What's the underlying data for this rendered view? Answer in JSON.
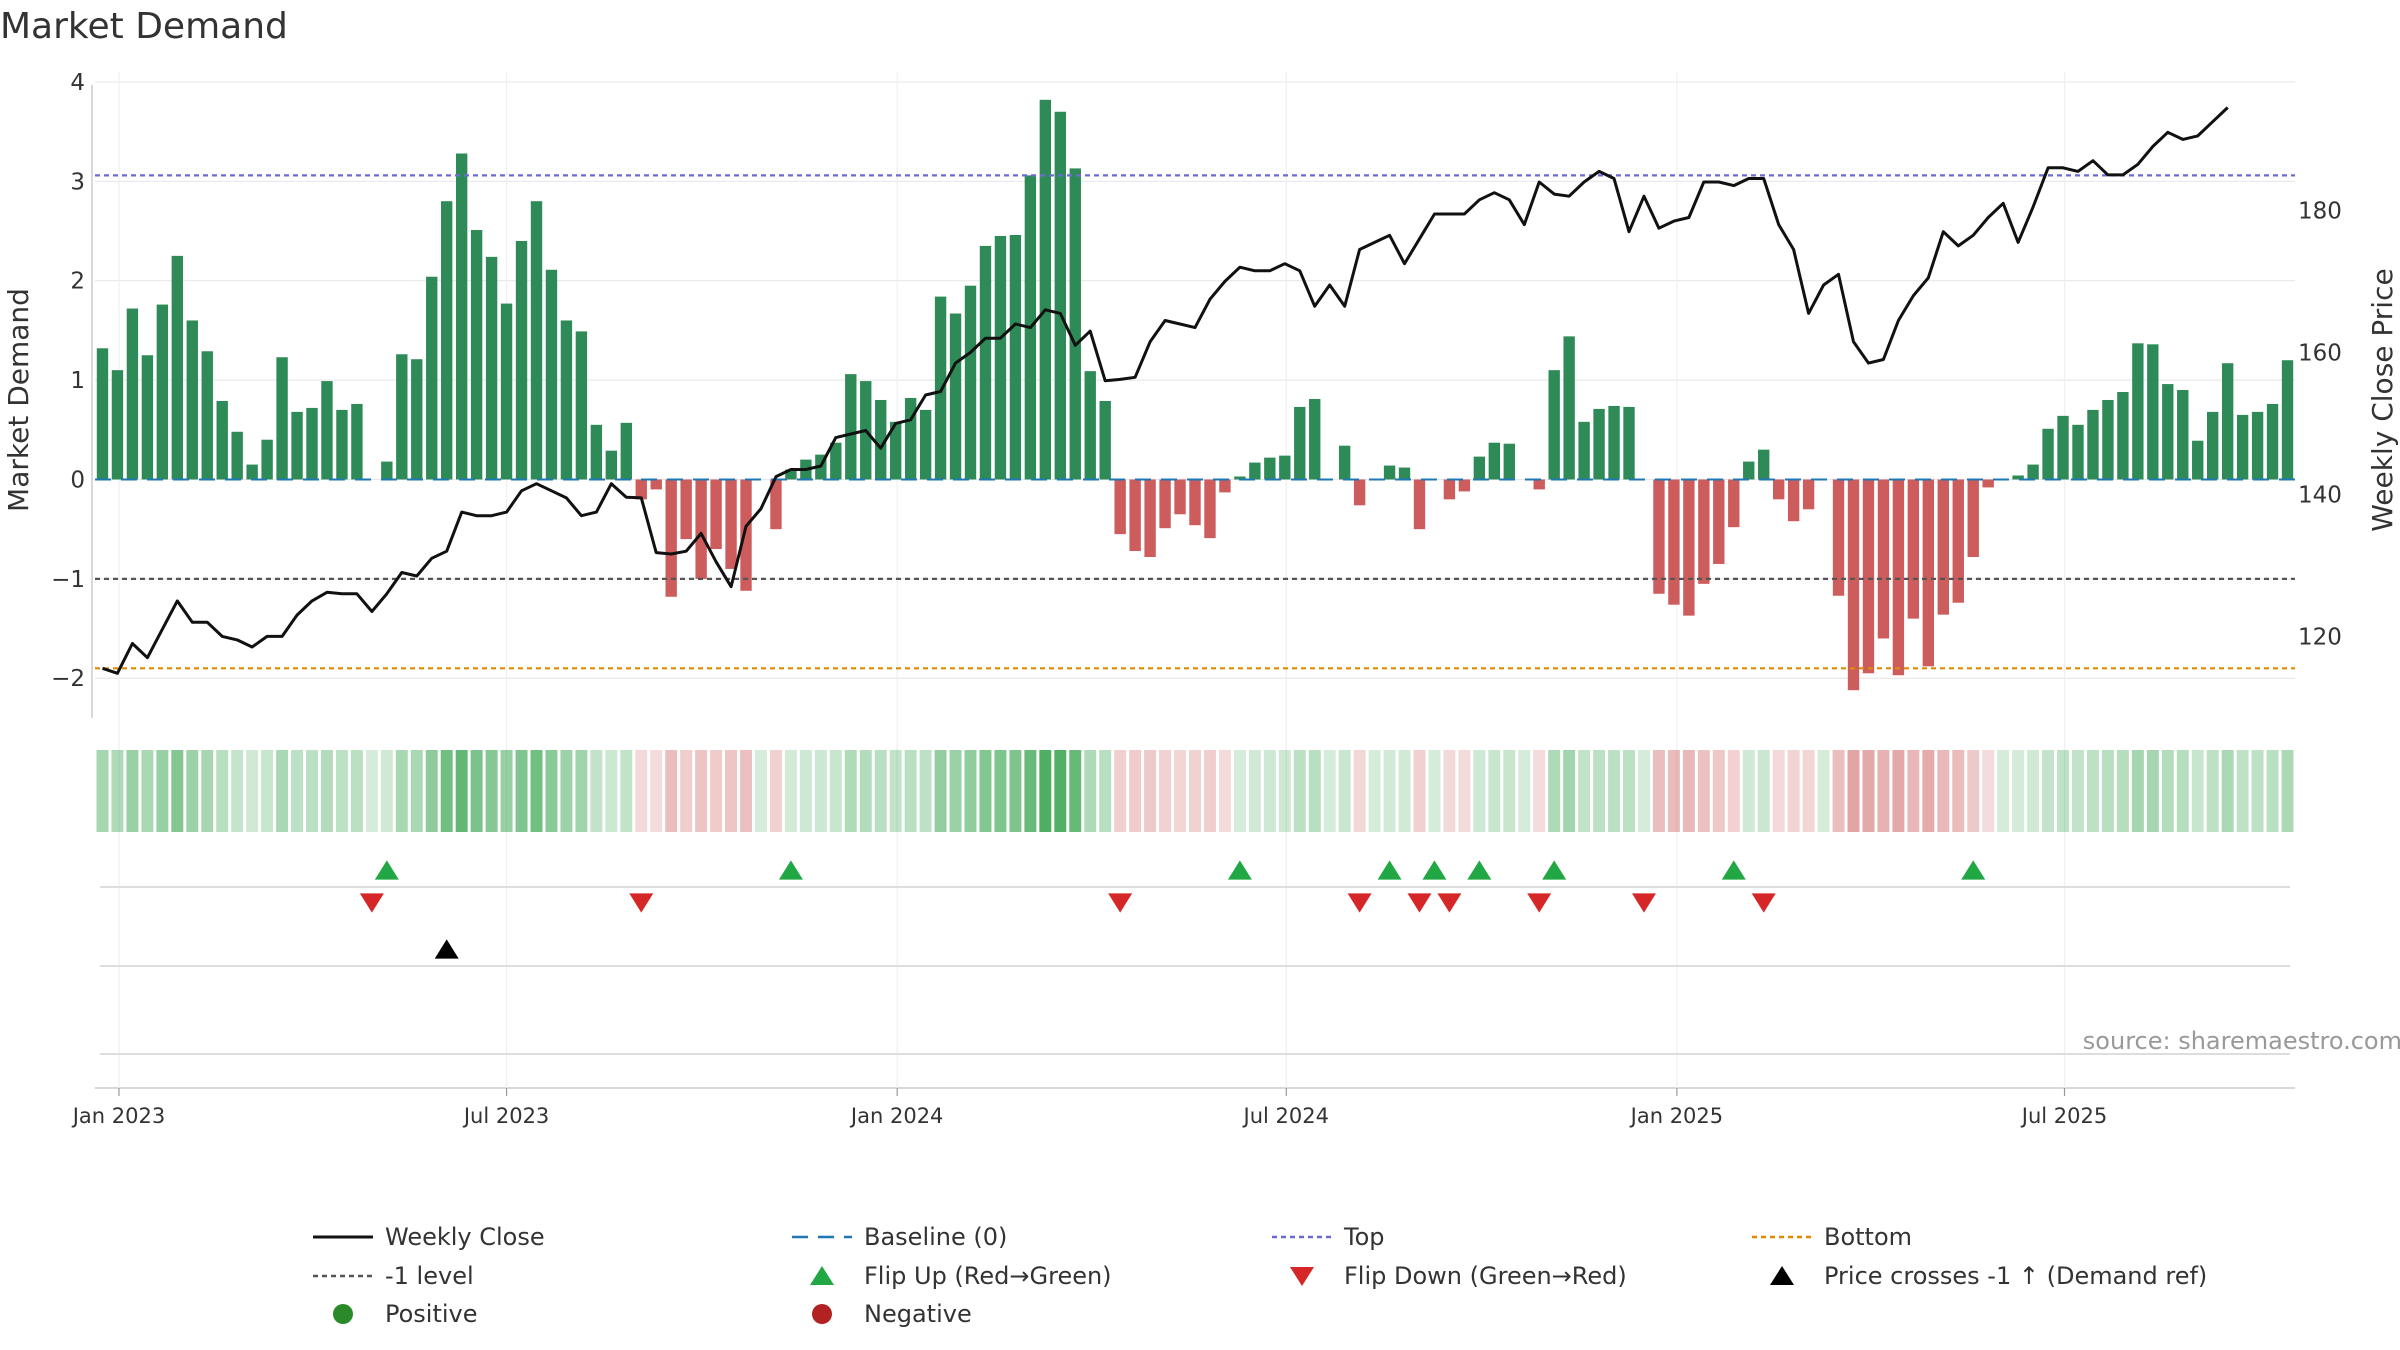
{
  "chart_data": {
    "type": "bar",
    "title": "Market Demand",
    "ylabel_left": "Market Demand",
    "ylabel_right": "Weekly Close Price",
    "y_left_range": [
      -2.4,
      4.1
    ],
    "y_left_ticks": [
      "4",
      "3",
      "2",
      "1",
      "0",
      "−1",
      "−2"
    ],
    "y_left_tick_values": [
      4,
      3,
      2,
      1,
      0,
      -1,
      -2
    ],
    "y_right_range": [
      108.5,
      199.5
    ],
    "y_right_ticks": [
      "180",
      "160",
      "140",
      "120"
    ],
    "y_right_tick_values": [
      180,
      160,
      140,
      120
    ],
    "x_ticks": [
      "Jan 2023",
      "Jul 2023",
      "Jan 2024",
      "Jul 2024",
      "Jan 2025",
      "Jul 2025"
    ],
    "x_tick_weeks": [
      1.6,
      27.5,
      53.6,
      79.6,
      105.7,
      131.6
    ],
    "reference_lines": {
      "top": 3.06,
      "minus_one": -1.0,
      "bottom": -1.9
    },
    "demand": [
      1.32,
      1.1,
      1.72,
      1.25,
      1.76,
      2.25,
      1.6,
      1.29,
      0.79,
      0.48,
      0.15,
      0.4,
      1.23,
      0.68,
      0.72,
      0.99,
      0.7,
      0.76,
      0,
      0.18,
      1.26,
      1.21,
      2.04,
      2.8,
      3.28,
      2.51,
      2.24,
      1.77,
      2.4,
      2.8,
      2.11,
      1.6,
      1.49,
      0.55,
      0.29,
      0.57,
      -0.2,
      -0.1,
      -1.18,
      -0.6,
      -1.0,
      -0.7,
      -0.9,
      -1.12,
      0,
      -0.5,
      0.1,
      0.2,
      0.25,
      0.37,
      1.06,
      0.99,
      0.8,
      0.58,
      0.82,
      0.7,
      1.84,
      1.67,
      1.95,
      2.35,
      2.45,
      2.46,
      3.06,
      3.82,
      3.7,
      3.13,
      1.09,
      0.79,
      -0.55,
      -0.72,
      -0.78,
      -0.49,
      -0.35,
      -0.46,
      -0.59,
      -0.13,
      0.03,
      0.17,
      0.22,
      0.24,
      0.73,
      0.81,
      0,
      0.34,
      -0.26,
      0,
      0.14,
      0.12,
      -0.5,
      0,
      -0.2,
      -0.12,
      0.23,
      0.37,
      0.36,
      0,
      -0.1,
      1.1,
      1.44,
      0.58,
      0.71,
      0.74,
      0.73,
      0,
      -1.15,
      -1.26,
      -1.37,
      -1.05,
      -0.85,
      -0.48,
      0.18,
      0.3,
      -0.2,
      -0.42,
      -0.3,
      0,
      -1.17,
      -2.12,
      -1.95,
      -1.6,
      -1.97,
      -1.4,
      -1.88,
      -1.36,
      -1.24,
      -0.78,
      -0.08,
      0,
      0.04,
      0.15,
      0.51,
      0.64,
      0.55,
      0.7,
      0.8,
      0.88,
      1.37,
      1.36,
      0.96,
      0.9,
      0.39,
      0.68,
      1.17,
      0.65,
      0.68,
      0.76,
      1.2
    ],
    "weekly_close": [
      115.5,
      114.8,
      119,
      117,
      121,
      125,
      122,
      122,
      120,
      119.5,
      118.5,
      120,
      120,
      123,
      125,
      126.2,
      126,
      126,
      123.5,
      126,
      129,
      128.5,
      131,
      132,
      137.5,
      137,
      137,
      137.5,
      140.5,
      141.5,
      140.5,
      139.5,
      137,
      137.5,
      141.5,
      139.6,
      139.5,
      131.8,
      131.6,
      132,
      134.5,
      130.5,
      127,
      135.5,
      138,
      142.5,
      143.5,
      143.5,
      144,
      148,
      148.5,
      149,
      146.5,
      150,
      150.5,
      154,
      154.5,
      158.5,
      160,
      162,
      162,
      164,
      163.5,
      166,
      165.5,
      161,
      163,
      156,
      156.2,
      156.5,
      161.5,
      164.5,
      164,
      163.5,
      167.5,
      170,
      172,
      171.5,
      171.5,
      172.5,
      171.5,
      166.5,
      169.5,
      166.5,
      174.5,
      175.5,
      176.5,
      172.5,
      176,
      179.5,
      179.5,
      179.5,
      181.5,
      182.5,
      181.5,
      178,
      184,
      182.3,
      182,
      184,
      185.5,
      184.5,
      177,
      182,
      177.5,
      178.5,
      179,
      184,
      184,
      183.5,
      184.5,
      184.5,
      178,
      174.5,
      165.5,
      169.5,
      171,
      161.5,
      158.5,
      159,
      164.5,
      168,
      170.5,
      177,
      175,
      176.5,
      179,
      181,
      175.5,
      180.5,
      186,
      186,
      185.5,
      187,
      185,
      185,
      186.5,
      189,
      191,
      190,
      190.5,
      192.5,
      194.5
    ],
    "flip_up_weeks": [
      19.5,
      46.5,
      76.5,
      86.5,
      89.5,
      92.5,
      97.5,
      109.5,
      125.5
    ],
    "flip_down_weeks": [
      18.5,
      36.5,
      68.5,
      84.5,
      88.5,
      90.5,
      96.5,
      103.5,
      111.5
    ],
    "price_cross_weeks": [
      23.5
    ],
    "source_text": "source: sharemaestro.com",
    "legend": [
      {
        "key": "weekly_close",
        "label": "Weekly Close",
        "symbol": "line",
        "color": "#111111"
      },
      {
        "key": "baseline",
        "label": "Baseline (0)",
        "symbol": "dash",
        "color": "#1f77b4"
      },
      {
        "key": "top",
        "label": "Top",
        "symbol": "dot",
        "color": "#6b6bd6"
      },
      {
        "key": "bottom",
        "label": "Bottom",
        "symbol": "dot",
        "color": "#e08a00"
      },
      {
        "key": "minus_one",
        "label": "-1 level",
        "symbol": "dot",
        "color": "#555555"
      },
      {
        "key": "flip_up",
        "label": "Flip Up (Red→Green)",
        "symbol": "tri-up",
        "color": "#22a745"
      },
      {
        "key": "flip_down",
        "label": "Flip Down (Green→Red)",
        "symbol": "tri-down",
        "color": "#d62728"
      },
      {
        "key": "price_cross",
        "label": "Price crosses -1 ↑ (Demand ref)",
        "symbol": "tri-up",
        "color": "#000000"
      },
      {
        "key": "positive",
        "label": "Positive",
        "symbol": "circle",
        "color": "#2a8a2a"
      },
      {
        "key": "negative",
        "label": "Negative",
        "symbol": "circle",
        "color": "#b22222"
      }
    ],
    "colors": {
      "positive_bar": "#2e8b57",
      "negative_bar": "#cd5c5c",
      "baseline": "#1f77b4",
      "top": "#6b6bd6",
      "bottom": "#e08a00",
      "minus_one": "#555555",
      "price": "#111111",
      "grid": "#e8e8e8"
    }
  }
}
